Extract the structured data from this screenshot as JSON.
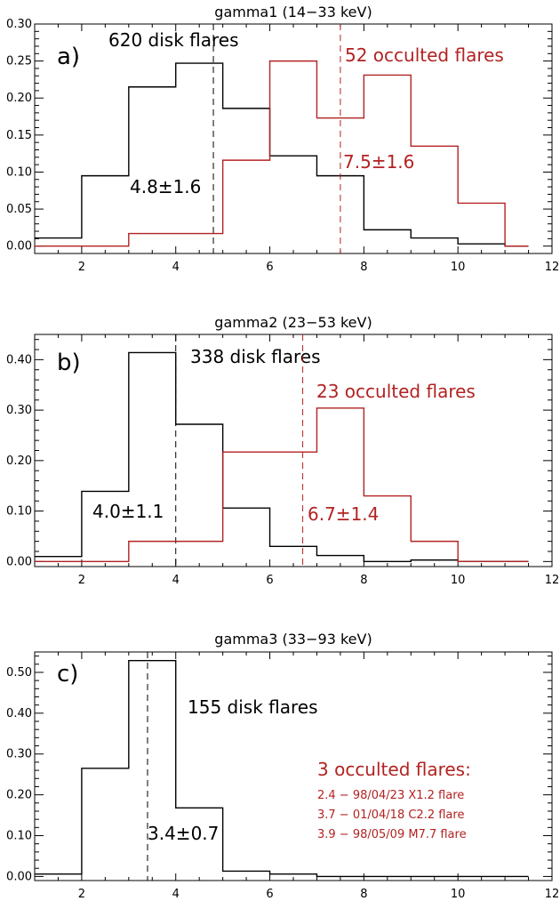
{
  "colors": {
    "disk": "#000000",
    "occulted": "#b22222",
    "axis": "#000000"
  },
  "chart_data": [
    {
      "type": "histogram",
      "title": "gamma1 (14−33 keV)",
      "panel_label": "a)",
      "xlim": [
        1,
        12
      ],
      "ylim": [
        -0.01,
        0.3
      ],
      "xticks": [
        2,
        4,
        6,
        8,
        10,
        12
      ],
      "yticks": [
        0.0,
        0.05,
        0.1,
        0.15,
        0.2,
        0.25,
        0.3
      ],
      "ytick_labels": [
        "0.00",
        "0.05",
        "0.10",
        "0.15",
        "0.20",
        "0.25",
        "0.30"
      ],
      "series": [
        {
          "key": "disk",
          "label": "620 disk flares",
          "edges": [
            1,
            2,
            3,
            4,
            5,
            6,
            7,
            8,
            9,
            10,
            11,
            11.5
          ],
          "values": [
            0.011,
            0.095,
            0.215,
            0.247,
            0.186,
            0.122,
            0.095,
            0.022,
            0.011,
            0.003,
            0.0
          ],
          "mean": 4.8,
          "mean_label": "4.8±1.6"
        },
        {
          "key": "occulted",
          "label": "52 occulted flares",
          "edges": [
            1,
            2,
            3,
            4,
            5,
            6,
            7,
            8,
            9,
            10,
            11,
            11.5
          ],
          "values": [
            0.0,
            0.0,
            0.017,
            0.017,
            0.116,
            0.25,
            0.173,
            0.231,
            0.135,
            0.058,
            0.0
          ],
          "mean": 7.5,
          "mean_label": "7.5±1.6"
        }
      ],
      "annotations": []
    },
    {
      "type": "histogram",
      "title": "gamma2 (23−53 keV)",
      "panel_label": "b)",
      "xlim": [
        1,
        12
      ],
      "ylim": [
        -0.01,
        0.45
      ],
      "xticks": [
        2,
        4,
        6,
        8,
        10,
        12
      ],
      "yticks": [
        0.0,
        0.1,
        0.2,
        0.3,
        0.4
      ],
      "ytick_labels": [
        "0.00",
        "0.10",
        "0.20",
        "0.30",
        "0.40"
      ],
      "series": [
        {
          "key": "disk",
          "label": "338 disk flares",
          "edges": [
            1,
            2,
            3,
            4,
            5,
            6,
            7,
            8,
            9,
            10,
            11,
            11.5
          ],
          "values": [
            0.01,
            0.139,
            0.414,
            0.272,
            0.106,
            0.03,
            0.012,
            0.0,
            0.003,
            0.0,
            0.0
          ],
          "mean": 4.0,
          "mean_label": "4.0±1.1"
        },
        {
          "key": "occulted",
          "label": "23 occulted flares",
          "edges": [
            1,
            2,
            3,
            4,
            5,
            6,
            7,
            8,
            9,
            10,
            11,
            11.5
          ],
          "values": [
            0.0,
            0.0,
            0.04,
            0.04,
            0.217,
            0.217,
            0.304,
            0.13,
            0.04,
            0.0,
            0.0
          ],
          "mean": 6.7,
          "mean_label": "6.7±1.4"
        }
      ],
      "annotations": []
    },
    {
      "type": "histogram",
      "title": "gamma3 (33−93 keV)",
      "panel_label": "c)",
      "xlim": [
        1,
        12
      ],
      "ylim": [
        -0.01,
        0.55
      ],
      "xticks": [
        2,
        4,
        6,
        8,
        10,
        12
      ],
      "yticks": [
        0.0,
        0.1,
        0.2,
        0.3,
        0.4,
        0.5
      ],
      "ytick_labels": [
        "0.00",
        "0.10",
        "0.20",
        "0.30",
        "0.40",
        "0.50"
      ],
      "series": [
        {
          "key": "disk",
          "label": "155 disk flares",
          "edges": [
            1,
            2,
            3,
            4,
            5,
            6,
            7,
            8,
            9,
            10,
            11,
            11.5
          ],
          "values": [
            0.006,
            0.265,
            0.529,
            0.168,
            0.013,
            0.006,
            0.0,
            0.0,
            0.0,
            0.0,
            0.0
          ],
          "mean": 3.4,
          "mean_label": "3.4±0.7"
        }
      ],
      "annotations": [
        {
          "key": "occulted",
          "text": "3 occulted flares:",
          "size": "large"
        },
        {
          "key": "occulted",
          "text": "2.4 − 98/04/23 X1.2 flare",
          "size": "small"
        },
        {
          "key": "occulted",
          "text": "3.7 − 01/04/18 C2.2 flare",
          "size": "small"
        },
        {
          "key": "occulted",
          "text": "3.9 − 98/05/09 M7.7 flare",
          "size": "small"
        }
      ]
    }
  ]
}
